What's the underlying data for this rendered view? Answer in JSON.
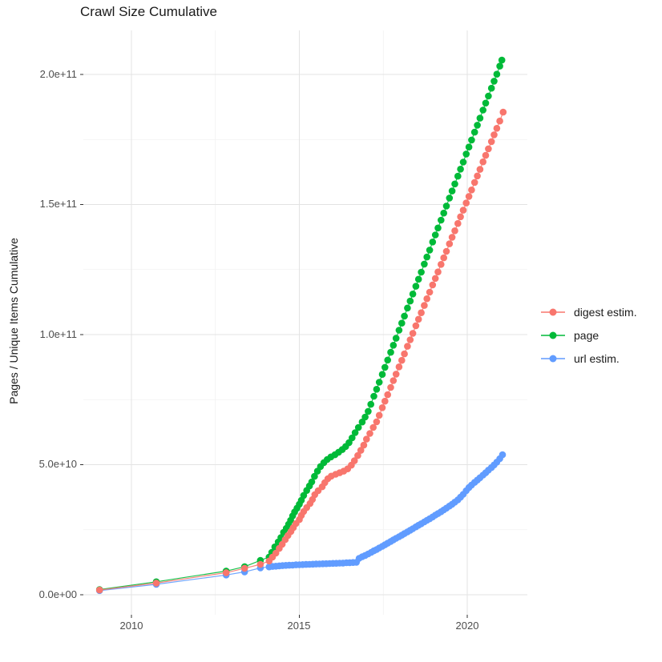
{
  "chart_data": {
    "type": "scatter-line",
    "title": "Crawl Size Cumulative",
    "xlabel": "",
    "ylabel": "Pages / Unique Items Cumulative",
    "value_unit": "1e9 pages (values below are billions)",
    "x_tick_labels": [
      "2010",
      "2015",
      "2020"
    ],
    "x_tick_years": [
      2010,
      2015,
      2020
    ],
    "x_minor_years": [
      2012.5,
      2017.5
    ],
    "y_tick_labels": [
      "0.0e+00",
      "5.0e+10",
      "1.0e+11",
      "1.5e+11",
      "2.0e+11"
    ],
    "y_tick_values_e9": [
      0,
      50,
      100,
      150,
      200
    ],
    "y_minor_values_e9": [
      25,
      75,
      125,
      175
    ],
    "x_domain_years": [
      2008.6,
      2021.8
    ],
    "y_domain_e9": [
      -7.7,
      216.9
    ],
    "grid": true,
    "legend_position": "right",
    "series": [
      {
        "name": "digest estim.",
        "color": "#F8766D",
        "points": [
          [
            2009.05,
            1.8
          ],
          [
            2010.74,
            4.5
          ],
          [
            2012.82,
            8.5
          ],
          [
            2013.37,
            10.2
          ],
          [
            2013.84,
            11.7
          ],
          [
            2014.1,
            13.0
          ],
          [
            2014.2,
            14.5
          ],
          [
            2014.3,
            16.0
          ],
          [
            2014.4,
            17.8
          ],
          [
            2014.49,
            19.4
          ],
          [
            2014.58,
            21.2
          ],
          [
            2014.66,
            22.8
          ],
          [
            2014.75,
            24.3
          ],
          [
            2014.82,
            25.8
          ],
          [
            2014.9,
            27.4
          ],
          [
            2015.0,
            28.9
          ],
          [
            2015.06,
            30.5
          ],
          [
            2015.13,
            32.0
          ],
          [
            2015.22,
            33.5
          ],
          [
            2015.32,
            35.1
          ],
          [
            2015.39,
            36.6
          ],
          [
            2015.46,
            38.5
          ],
          [
            2015.56,
            40.0
          ],
          [
            2015.68,
            41.5
          ],
          [
            2015.76,
            43.1
          ],
          [
            2015.85,
            44.6
          ],
          [
            2015.95,
            45.6
          ],
          [
            2016.08,
            46.3
          ],
          [
            2016.2,
            46.9
          ],
          [
            2016.32,
            47.5
          ],
          [
            2016.44,
            48.4
          ],
          [
            2016.55,
            49.8
          ],
          [
            2016.64,
            51.5
          ],
          [
            2016.74,
            53.5
          ],
          [
            2016.83,
            55.5
          ],
          [
            2016.92,
            57.5
          ],
          [
            2017.0,
            59.8
          ],
          [
            2017.1,
            62.0
          ],
          [
            2017.2,
            64.3
          ],
          [
            2017.3,
            66.5
          ],
          [
            2017.38,
            69.0
          ],
          [
            2017.47,
            71.9
          ],
          [
            2017.55,
            74.4
          ],
          [
            2017.63,
            76.9
          ],
          [
            2017.72,
            79.7
          ],
          [
            2017.8,
            82.3
          ],
          [
            2017.88,
            84.8
          ],
          [
            2017.97,
            87.6
          ],
          [
            2018.05,
            90.1
          ],
          [
            2018.13,
            92.6
          ],
          [
            2018.22,
            95.5
          ],
          [
            2018.3,
            98.0
          ],
          [
            2018.38,
            100.5
          ],
          [
            2018.47,
            103.4
          ],
          [
            2018.55,
            105.9
          ],
          [
            2018.63,
            108.4
          ],
          [
            2018.72,
            111.2
          ],
          [
            2018.8,
            113.8
          ],
          [
            2018.88,
            116.3
          ],
          [
            2018.97,
            119.1
          ],
          [
            2019.05,
            121.6
          ],
          [
            2019.13,
            124.1
          ],
          [
            2019.22,
            127.0
          ],
          [
            2019.3,
            129.5
          ],
          [
            2019.38,
            132.0
          ],
          [
            2019.47,
            134.9
          ],
          [
            2019.55,
            137.4
          ],
          [
            2019.63,
            139.9
          ],
          [
            2019.72,
            142.7
          ],
          [
            2019.8,
            145.3
          ],
          [
            2019.88,
            147.8
          ],
          [
            2019.97,
            150.6
          ],
          [
            2020.05,
            153.1
          ],
          [
            2020.13,
            155.6
          ],
          [
            2020.22,
            158.5
          ],
          [
            2020.3,
            161.0
          ],
          [
            2020.38,
            163.5
          ],
          [
            2020.47,
            166.4
          ],
          [
            2020.55,
            168.9
          ],
          [
            2020.63,
            171.4
          ],
          [
            2020.72,
            174.2
          ],
          [
            2020.8,
            176.8
          ],
          [
            2020.88,
            179.3
          ],
          [
            2020.97,
            182.1
          ],
          [
            2021.07,
            185.5
          ]
        ]
      },
      {
        "name": "page",
        "color": "#00BA38",
        "points": [
          [
            2009.05,
            2.0
          ],
          [
            2010.74,
            5.0
          ],
          [
            2012.82,
            9.1
          ],
          [
            2013.37,
            10.8
          ],
          [
            2013.84,
            13.2
          ],
          [
            2014.1,
            14.5
          ],
          [
            2014.18,
            16.3
          ],
          [
            2014.27,
            18.4
          ],
          [
            2014.37,
            20.3
          ],
          [
            2014.45,
            22.0
          ],
          [
            2014.53,
            24.0
          ],
          [
            2014.61,
            25.5
          ],
          [
            2014.68,
            27.1
          ],
          [
            2014.74,
            28.6
          ],
          [
            2014.8,
            30.3
          ],
          [
            2014.86,
            31.8
          ],
          [
            2014.93,
            33.3
          ],
          [
            2015.0,
            34.8
          ],
          [
            2015.06,
            36.3
          ],
          [
            2015.13,
            38.2
          ],
          [
            2015.22,
            40.1
          ],
          [
            2015.3,
            41.8
          ],
          [
            2015.37,
            43.4
          ],
          [
            2015.45,
            45.5
          ],
          [
            2015.54,
            47.5
          ],
          [
            2015.63,
            49.3
          ],
          [
            2015.73,
            50.8
          ],
          [
            2015.83,
            52.0
          ],
          [
            2015.94,
            53.0
          ],
          [
            2016.06,
            53.8
          ],
          [
            2016.17,
            54.8
          ],
          [
            2016.28,
            55.8
          ],
          [
            2016.38,
            57.0
          ],
          [
            2016.48,
            58.5
          ],
          [
            2016.57,
            60.3
          ],
          [
            2016.66,
            62.3
          ],
          [
            2016.76,
            64.3
          ],
          [
            2016.87,
            66.4
          ],
          [
            2016.96,
            68.3
          ],
          [
            2017.05,
            70.5
          ],
          [
            2017.13,
            73.2
          ],
          [
            2017.22,
            76.3
          ],
          [
            2017.3,
            79.0
          ],
          [
            2017.38,
            81.7
          ],
          [
            2017.47,
            84.7
          ],
          [
            2017.55,
            87.4
          ],
          [
            2017.63,
            90.2
          ],
          [
            2017.72,
            93.2
          ],
          [
            2017.8,
            95.9
          ],
          [
            2017.88,
            98.6
          ],
          [
            2017.97,
            101.7
          ],
          [
            2018.05,
            104.4
          ],
          [
            2018.13,
            107.1
          ],
          [
            2018.22,
            110.2
          ],
          [
            2018.3,
            112.9
          ],
          [
            2018.38,
            115.6
          ],
          [
            2018.47,
            118.6
          ],
          [
            2018.55,
            121.3
          ],
          [
            2018.63,
            124.0
          ],
          [
            2018.72,
            127.1
          ],
          [
            2018.8,
            129.8
          ],
          [
            2018.88,
            132.5
          ],
          [
            2018.97,
            135.6
          ],
          [
            2019.05,
            138.3
          ],
          [
            2019.13,
            141.0
          ],
          [
            2019.22,
            144.0
          ],
          [
            2019.3,
            146.7
          ],
          [
            2019.38,
            149.4
          ],
          [
            2019.47,
            152.5
          ],
          [
            2019.55,
            155.2
          ],
          [
            2019.63,
            157.9
          ],
          [
            2019.72,
            160.9
          ],
          [
            2019.8,
            163.6
          ],
          [
            2019.88,
            166.3
          ],
          [
            2019.97,
            169.4
          ],
          [
            2020.05,
            172.1
          ],
          [
            2020.13,
            174.8
          ],
          [
            2020.22,
            177.8
          ],
          [
            2020.3,
            180.5
          ],
          [
            2020.38,
            183.2
          ],
          [
            2020.47,
            186.3
          ],
          [
            2020.55,
            189.0
          ],
          [
            2020.63,
            191.7
          ],
          [
            2020.72,
            194.7
          ],
          [
            2020.8,
            197.4
          ],
          [
            2020.88,
            200.1
          ],
          [
            2020.97,
            203.2
          ],
          [
            2021.03,
            205.5
          ]
        ]
      },
      {
        "name": "url estim.",
        "color": "#619CFF",
        "points": [
          [
            2009.05,
            1.6
          ],
          [
            2010.74,
            4.0
          ],
          [
            2012.82,
            7.6
          ],
          [
            2013.37,
            8.8
          ],
          [
            2013.84,
            10.3
          ],
          [
            2014.1,
            10.7
          ],
          [
            2014.2,
            10.9
          ],
          [
            2014.3,
            11.0
          ],
          [
            2014.4,
            11.1
          ],
          [
            2014.5,
            11.2
          ],
          [
            2014.6,
            11.3
          ],
          [
            2014.7,
            11.35
          ],
          [
            2014.8,
            11.4
          ],
          [
            2014.9,
            11.5
          ],
          [
            2015.0,
            11.55
          ],
          [
            2015.1,
            11.6
          ],
          [
            2015.2,
            11.65
          ],
          [
            2015.3,
            11.7
          ],
          [
            2015.4,
            11.75
          ],
          [
            2015.5,
            11.8
          ],
          [
            2015.6,
            11.85
          ],
          [
            2015.7,
            11.9
          ],
          [
            2015.8,
            11.95
          ],
          [
            2015.9,
            12.0
          ],
          [
            2016.0,
            12.05
          ],
          [
            2016.1,
            12.1
          ],
          [
            2016.2,
            12.15
          ],
          [
            2016.3,
            12.2
          ],
          [
            2016.4,
            12.3
          ],
          [
            2016.5,
            12.35
          ],
          [
            2016.6,
            12.4
          ],
          [
            2016.7,
            12.5
          ],
          [
            2016.78,
            14.0
          ],
          [
            2016.87,
            14.6
          ],
          [
            2016.96,
            15.1
          ],
          [
            2017.05,
            15.7
          ],
          [
            2017.14,
            16.3
          ],
          [
            2017.22,
            16.9
          ],
          [
            2017.3,
            17.4
          ],
          [
            2017.38,
            18.0
          ],
          [
            2017.47,
            18.6
          ],
          [
            2017.55,
            19.2
          ],
          [
            2017.63,
            19.8
          ],
          [
            2017.72,
            20.5
          ],
          [
            2017.8,
            21.1
          ],
          [
            2017.88,
            21.7
          ],
          [
            2017.97,
            22.3
          ],
          [
            2018.05,
            22.9
          ],
          [
            2018.13,
            23.5
          ],
          [
            2018.22,
            24.2
          ],
          [
            2018.3,
            24.8
          ],
          [
            2018.38,
            25.4
          ],
          [
            2018.47,
            26.1
          ],
          [
            2018.55,
            26.7
          ],
          [
            2018.63,
            27.3
          ],
          [
            2018.72,
            28.0
          ],
          [
            2018.8,
            28.6
          ],
          [
            2018.88,
            29.2
          ],
          [
            2018.97,
            29.9
          ],
          [
            2019.05,
            30.6
          ],
          [
            2019.13,
            31.2
          ],
          [
            2019.22,
            31.9
          ],
          [
            2019.3,
            32.6
          ],
          [
            2019.38,
            33.3
          ],
          [
            2019.47,
            34.1
          ],
          [
            2019.55,
            34.8
          ],
          [
            2019.63,
            35.6
          ],
          [
            2019.72,
            36.5
          ],
          [
            2019.8,
            37.5
          ],
          [
            2019.88,
            38.6
          ],
          [
            2019.97,
            40.0
          ],
          [
            2020.05,
            41.2
          ],
          [
            2020.13,
            42.2
          ],
          [
            2020.22,
            43.2
          ],
          [
            2020.3,
            44.1
          ],
          [
            2020.38,
            45.0
          ],
          [
            2020.47,
            46.0
          ],
          [
            2020.55,
            46.9
          ],
          [
            2020.63,
            47.9
          ],
          [
            2020.72,
            48.9
          ],
          [
            2020.8,
            49.9
          ],
          [
            2020.88,
            51.0
          ],
          [
            2020.97,
            52.3
          ],
          [
            2021.05,
            53.8
          ]
        ]
      }
    ]
  }
}
